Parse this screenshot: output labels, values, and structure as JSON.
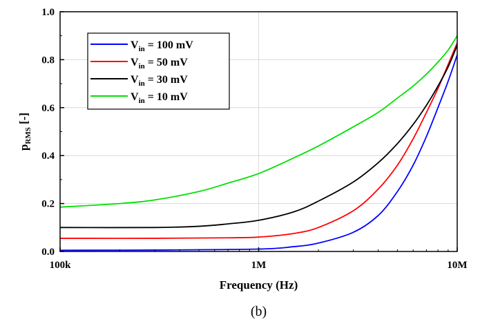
{
  "chart_data": {
    "type": "line",
    "x_scale": "log",
    "xlabel": "Frequency (Hz)",
    "ylabel": {
      "main": "p",
      "sub": "RMS",
      "suffix": " [-]"
    },
    "xlim": [
      100000,
      10000000
    ],
    "ylim": [
      0.0,
      1.0
    ],
    "x_ticks": [
      {
        "value": 100000,
        "label": "100k"
      },
      {
        "value": 1000000,
        "label": "1M"
      },
      {
        "value": 10000000,
        "label": "10M"
      }
    ],
    "y_ticks": [
      {
        "value": 0.0,
        "label": "0.0"
      },
      {
        "value": 0.2,
        "label": "0.2"
      },
      {
        "value": 0.4,
        "label": "0.4"
      },
      {
        "value": 0.6,
        "label": "0.6"
      },
      {
        "value": 0.8,
        "label": "0.8"
      },
      {
        "value": 1.0,
        "label": "1.0"
      }
    ],
    "legend_position": "top-left",
    "caption": "(b)",
    "series": [
      {
        "name": "V_in = 100 mV",
        "label_main": "V",
        "label_sub": "in",
        "label_rest": " = 100 mV",
        "color": "#0000ff",
        "x": [
          100000,
          300000,
          1000000,
          1500000,
          2000000,
          3000000,
          4000000,
          5000000,
          6000000,
          7000000,
          8000000,
          9000000,
          10000000
        ],
        "y": [
          0.005,
          0.006,
          0.01,
          0.02,
          0.035,
          0.08,
          0.15,
          0.25,
          0.36,
          0.48,
          0.6,
          0.71,
          0.82
        ]
      },
      {
        "name": "V_in = 50 mV",
        "label_main": "V",
        "label_sub": "in",
        "label_rest": " = 50 mV",
        "color": "#ff0000",
        "x": [
          100000,
          300000,
          700000,
          1000000,
          1500000,
          2000000,
          3000000,
          4000000,
          5000000,
          6000000,
          7000000,
          8000000,
          9000000,
          10000000
        ],
        "y": [
          0.055,
          0.055,
          0.057,
          0.06,
          0.075,
          0.1,
          0.17,
          0.26,
          0.36,
          0.47,
          0.58,
          0.68,
          0.78,
          0.87
        ]
      },
      {
        "name": "V_in = 30 mV",
        "label_main": "V",
        "label_sub": "in",
        "label_rest": " = 30 mV",
        "color": "#000000",
        "x": [
          100000,
          300000,
          500000,
          700000,
          1000000,
          1500000,
          2000000,
          3000000,
          4000000,
          5000000,
          6000000,
          7000000,
          8000000,
          9000000,
          10000000
        ],
        "y": [
          0.1,
          0.1,
          0.105,
          0.115,
          0.13,
          0.165,
          0.21,
          0.29,
          0.37,
          0.45,
          0.53,
          0.61,
          0.69,
          0.77,
          0.86
        ]
      },
      {
        "name": "V_in = 10 mV",
        "label_main": "V",
        "label_sub": "in",
        "label_rest": " = 10 mV",
        "color": "#00e000",
        "x": [
          100000,
          200000,
          300000,
          500000,
          700000,
          1000000,
          1500000,
          2000000,
          3000000,
          4000000,
          5000000,
          6000000,
          7000000,
          8000000,
          9000000,
          10000000
        ],
        "y": [
          0.185,
          0.2,
          0.215,
          0.25,
          0.285,
          0.325,
          0.39,
          0.44,
          0.52,
          0.58,
          0.64,
          0.69,
          0.74,
          0.79,
          0.84,
          0.9
        ]
      }
    ]
  }
}
